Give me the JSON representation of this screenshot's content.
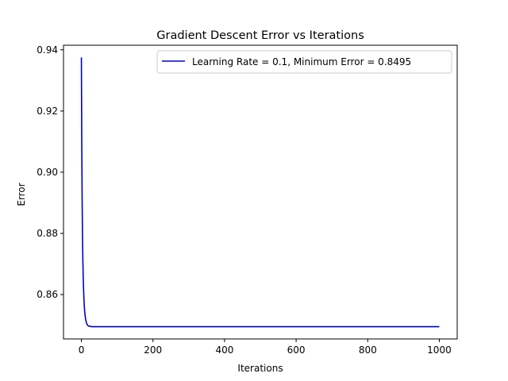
{
  "chart_data": {
    "type": "line",
    "title": "Gradient Descent Error vs Iterations",
    "xlabel": "Iterations",
    "ylabel": "Error",
    "xlim": [
      -50,
      1050
    ],
    "ylim": [
      0.8455,
      0.9415
    ],
    "xticks": [
      0,
      200,
      400,
      600,
      800,
      1000
    ],
    "yticks": [
      0.86,
      0.88,
      0.9,
      0.92,
      0.94
    ],
    "xtick_labels": [
      "0",
      "200",
      "400",
      "600",
      "800",
      "1000"
    ],
    "ytick_labels": [
      "0.86",
      "0.88",
      "0.90",
      "0.92",
      "0.94"
    ],
    "grid": false,
    "legend_position": "top-right",
    "series": [
      {
        "name": "Learning Rate = 0.1, Minimum Error = 0.8495",
        "color": "#0000cc",
        "x": [
          0,
          1,
          2,
          3,
          4,
          5,
          6,
          7,
          8,
          9,
          10,
          12,
          14,
          16,
          18,
          20,
          25,
          30,
          40,
          60,
          100,
          200,
          400,
          600,
          800,
          1000
        ],
        "y": [
          0.9375,
          0.91,
          0.892,
          0.88,
          0.872,
          0.866,
          0.862,
          0.859,
          0.8565,
          0.8548,
          0.8535,
          0.8518,
          0.8508,
          0.8502,
          0.8499,
          0.8497,
          0.8496,
          0.8495,
          0.8495,
          0.8495,
          0.8495,
          0.8495,
          0.8495,
          0.8495,
          0.8495,
          0.8495
        ]
      }
    ]
  }
}
